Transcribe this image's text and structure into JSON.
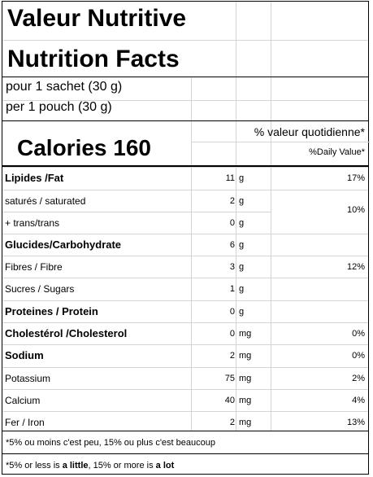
{
  "title_fr": "Valeur Nutritive",
  "title_en": "Nutrition Facts",
  "serving_fr": "pour 1 sachet  (30 g)",
  "serving_en": "per 1 pouch (30 g)",
  "calories_label": "Calories 160",
  "dv_header_fr": "% valeur quotidienne*",
  "dv_header_en": "%Daily Value*",
  "rows": [
    {
      "name": "Lipides /Fat",
      "amount": "11",
      "unit": "g",
      "dv": "17%"
    },
    {
      "name": "saturés / saturated",
      "amount": "2",
      "unit": "g",
      "dv": "10%"
    },
    {
      "name": " + trans/trans",
      "amount": "0",
      "unit": "g",
      "dv": ""
    },
    {
      "name": "Glucides/Carbohydrate",
      "amount": "6",
      "unit": "g",
      "dv": ""
    },
    {
      "name": "Fibres / Fibre",
      "amount": "3",
      "unit": "g",
      "dv": "12%"
    },
    {
      "name": "Sucres / Sugars",
      "amount": "1",
      "unit": "g",
      "dv": ""
    },
    {
      "name": "Proteines / Protein",
      "amount": "0",
      "unit": "g",
      "dv": ""
    },
    {
      "name": "Cholestérol /Cholesterol",
      "amount": "0",
      "unit": "mg",
      "dv": "0%"
    },
    {
      "name": "Sodium",
      "amount": "2",
      "unit": "mg",
      "dv": "0%"
    },
    {
      "name": "Potassium",
      "amount": "75",
      "unit": "mg",
      "dv": "2%"
    },
    {
      "name": "Calcium",
      "amount": "40",
      "unit": "mg",
      "dv": "4%"
    },
    {
      "name": "Fer / Iron",
      "amount": "2",
      "unit": "mg",
      "dv": "13%"
    }
  ],
  "footnote_fr": "*5% ou moins c'est peu, 15% ou plus c'est beaucoup",
  "footnote_en_part1": "*5% or less is ",
  "footnote_en_bold1": "a little",
  "footnote_en_part2": ", 15% or more is ",
  "footnote_en_bold2": "a lot"
}
